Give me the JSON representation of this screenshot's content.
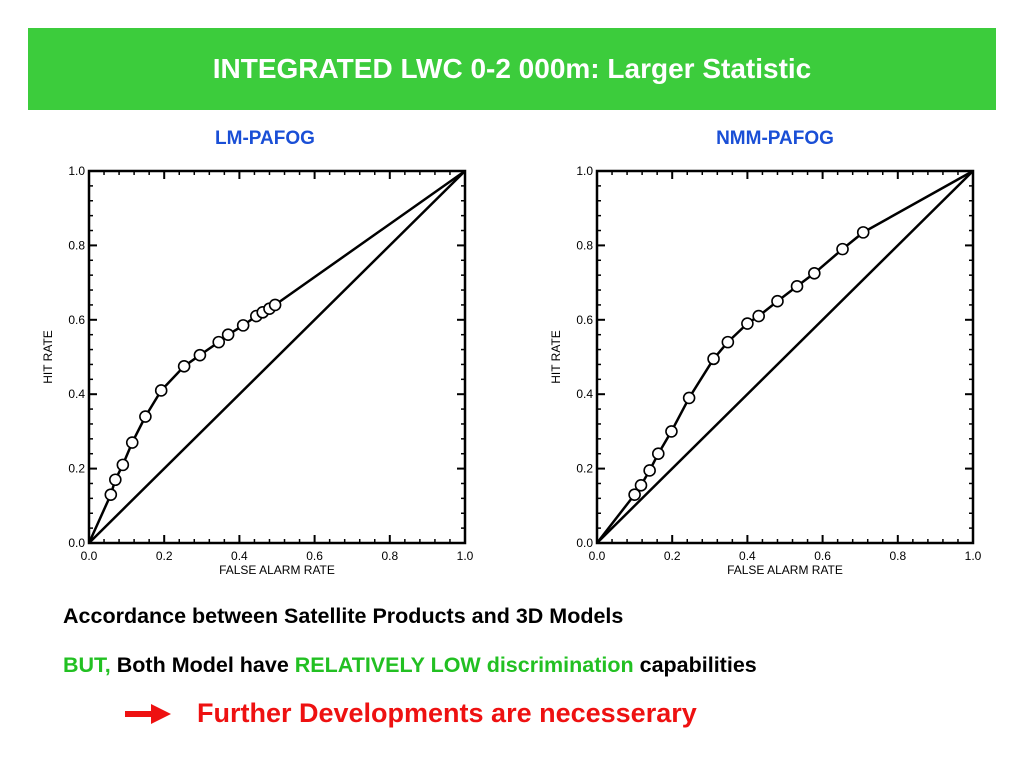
{
  "header": {
    "title": "INTEGRATED LWC 0-2 000m: Larger Statistic"
  },
  "colors": {
    "title_bg": "#3ccc3c",
    "chart_title": "#1a4fd6",
    "accent_green": "#22c022",
    "accent_red": "#ee1111"
  },
  "chart_data": [
    {
      "type": "line",
      "title": "LM-PAFOG",
      "xlabel": "FALSE ALARM RATE",
      "ylabel": "HIT RATE",
      "xlim": [
        0.0,
        1.0
      ],
      "ylim": [
        0.0,
        1.0
      ],
      "xticks": [
        "0.0",
        "0.2",
        "0.4",
        "0.6",
        "0.8",
        "1.0"
      ],
      "yticks": [
        "0.0",
        "0.2",
        "0.4",
        "0.6",
        "0.8",
        "1.0"
      ],
      "grid": false,
      "series": [
        {
          "points": [
            [
              0.0,
              0.0
            ],
            [
              0.058,
              0.13
            ],
            [
              0.07,
              0.17
            ],
            [
              0.09,
              0.21
            ],
            [
              0.115,
              0.27
            ],
            [
              0.15,
              0.34
            ],
            [
              0.192,
              0.41
            ],
            [
              0.253,
              0.475
            ],
            [
              0.295,
              0.505
            ],
            [
              0.345,
              0.54
            ],
            [
              0.37,
              0.56
            ],
            [
              0.41,
              0.585
            ],
            [
              0.445,
              0.61
            ],
            [
              0.462,
              0.62
            ],
            [
              0.48,
              0.63
            ],
            [
              0.495,
              0.64
            ],
            [
              1.0,
              1.0
            ]
          ],
          "markers": [
            [
              0.058,
              0.13
            ],
            [
              0.07,
              0.17
            ],
            [
              0.09,
              0.21
            ],
            [
              0.115,
              0.27
            ],
            [
              0.15,
              0.34
            ],
            [
              0.192,
              0.41
            ],
            [
              0.253,
              0.475
            ],
            [
              0.295,
              0.505
            ],
            [
              0.345,
              0.54
            ],
            [
              0.37,
              0.56
            ],
            [
              0.41,
              0.585
            ],
            [
              0.445,
              0.61
            ],
            [
              0.462,
              0.62
            ],
            [
              0.48,
              0.63
            ],
            [
              0.495,
              0.64
            ]
          ]
        },
        {
          "points": [
            [
              0.0,
              0.0
            ],
            [
              1.0,
              1.0
            ]
          ],
          "markers": []
        }
      ]
    },
    {
      "type": "line",
      "title": "NMM-PAFOG",
      "xlabel": "FALSE ALARM RATE",
      "ylabel": "HIT RATE",
      "xlim": [
        0.0,
        1.0
      ],
      "ylim": [
        0.0,
        1.0
      ],
      "xticks": [
        "0.0",
        "0.2",
        "0.4",
        "0.6",
        "0.8",
        "1.0"
      ],
      "yticks": [
        "0.0",
        "0.2",
        "0.4",
        "0.6",
        "0.8",
        "1.0"
      ],
      "grid": false,
      "series": [
        {
          "points": [
            [
              0.0,
              0.0
            ],
            [
              0.1,
              0.13
            ],
            [
              0.117,
              0.155
            ],
            [
              0.14,
              0.195
            ],
            [
              0.163,
              0.24
            ],
            [
              0.198,
              0.3
            ],
            [
              0.245,
              0.39
            ],
            [
              0.31,
              0.495
            ],
            [
              0.348,
              0.54
            ],
            [
              0.4,
              0.59
            ],
            [
              0.43,
              0.61
            ],
            [
              0.48,
              0.65
            ],
            [
              0.532,
              0.69
            ],
            [
              0.578,
              0.725
            ],
            [
              0.653,
              0.79
            ],
            [
              0.708,
              0.835
            ],
            [
              1.0,
              1.0
            ]
          ],
          "markers": [
            [
              0.1,
              0.13
            ],
            [
              0.117,
              0.155
            ],
            [
              0.14,
              0.195
            ],
            [
              0.163,
              0.24
            ],
            [
              0.198,
              0.3
            ],
            [
              0.245,
              0.39
            ],
            [
              0.31,
              0.495
            ],
            [
              0.348,
              0.54
            ],
            [
              0.4,
              0.59
            ],
            [
              0.43,
              0.61
            ],
            [
              0.48,
              0.65
            ],
            [
              0.532,
              0.69
            ],
            [
              0.578,
              0.725
            ],
            [
              0.653,
              0.79
            ],
            [
              0.708,
              0.835
            ]
          ]
        },
        {
          "points": [
            [
              0.0,
              0.0
            ],
            [
              1.0,
              1.0
            ]
          ],
          "markers": []
        }
      ]
    }
  ],
  "text": {
    "line1": "Accordance between Satellite Products and 3D Models",
    "line2_but": "BUT,",
    "line2_a": "Both Model have",
    "line2_highlight": "RELATIVELY LOW discrimination",
    "line2_b": "capabilities",
    "line3": "Further Developments are necesserary"
  },
  "icons": {
    "arrow": "right-arrow-icon"
  }
}
